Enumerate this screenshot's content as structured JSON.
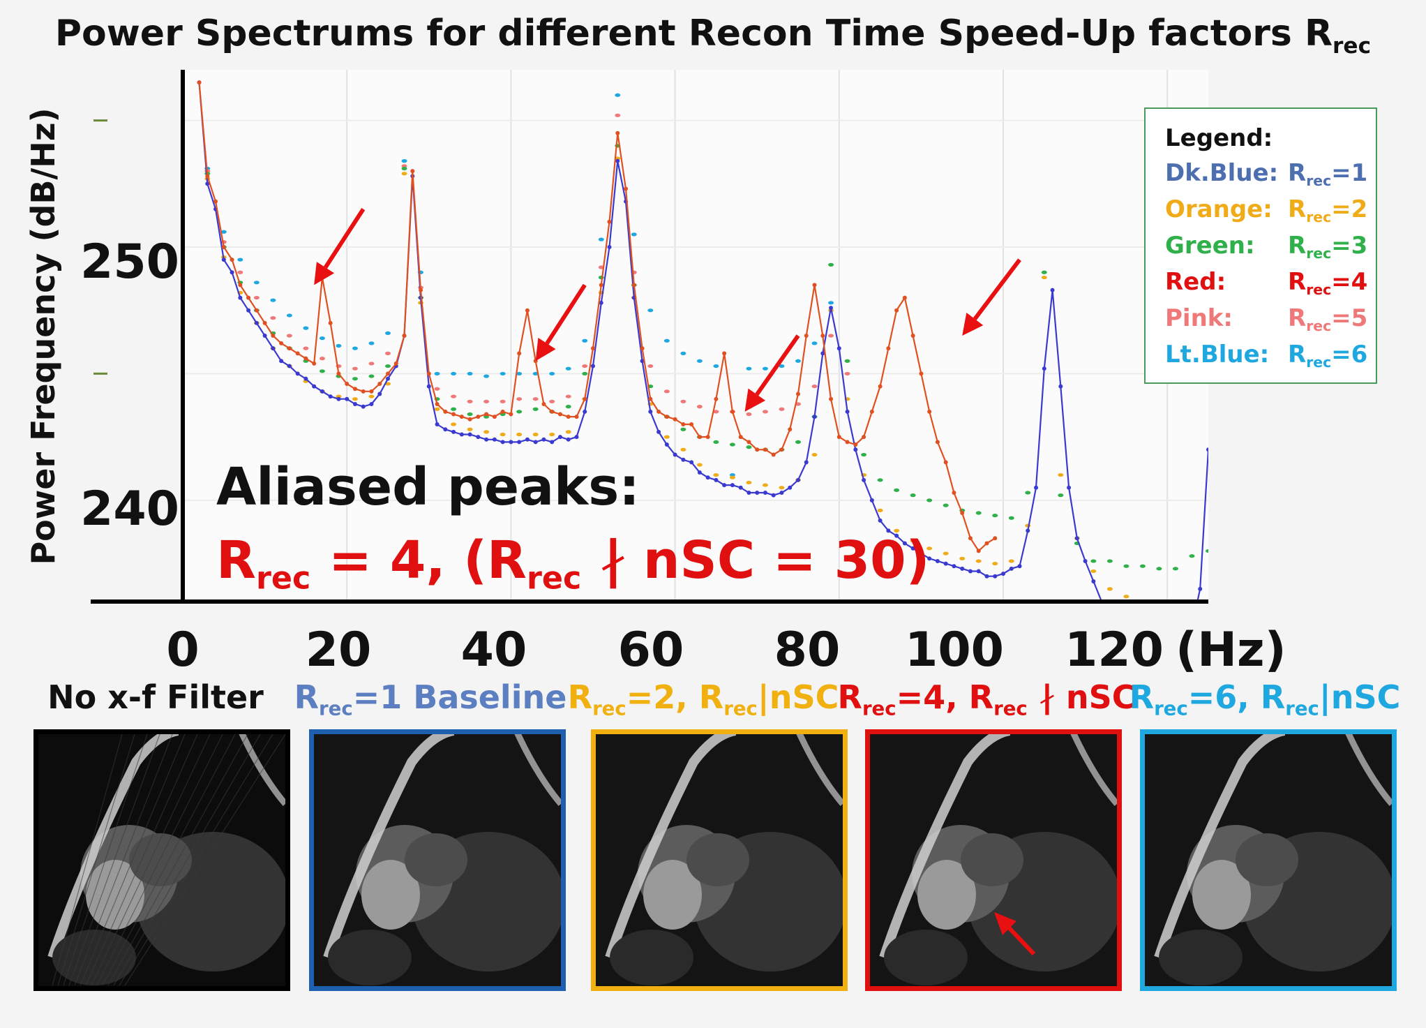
{
  "chart_data": {
    "type": "line",
    "title": "Power Spectrums for different Recon Time Speed-Up factors R",
    "title_sub": "rec",
    "ylabel": "Power Frequency (dB/Hz)",
    "xlim": [
      0,
      125
    ],
    "ylim": [
      236,
      257
    ],
    "y_ticks": [
      "240",
      "250"
    ],
    "x_ticks": [
      "0",
      "20",
      "40",
      "60",
      "80",
      "100",
      "120"
    ],
    "x_unit": "(Hz)",
    "legend": {
      "title": "Legend:",
      "position": "top-right",
      "entries": [
        {
          "label": "Dk.Blue:",
          "r": "R",
          "sub": "rec",
          "val": "=1",
          "color": "#4d6fb0"
        },
        {
          "label": "Orange:",
          "r": "R",
          "sub": "rec",
          "val": "=2",
          "color": "#f0ac18"
        },
        {
          "label": "Green:",
          "r": "R",
          "sub": "rec",
          "val": "=3",
          "color": "#2fb04a"
        },
        {
          "label": "Red:",
          "r": "R",
          "sub": "rec",
          "val": "=4",
          "color": "#e01010"
        },
        {
          "label": "Pink:",
          "r": "R",
          "sub": "rec",
          "val": "=5",
          "color": "#ef7878"
        },
        {
          "label": "Lt.Blue:",
          "r": "R",
          "sub": "rec",
          "val": "=6",
          "color": "#1fa8e0"
        }
      ]
    },
    "series": [
      {
        "name": "Dk.Blue",
        "color": "#3a3ad0",
        "style": "line",
        "x": [
          2,
          3,
          4,
          5,
          6,
          7,
          8,
          9,
          10,
          11,
          12,
          13,
          14,
          15,
          16,
          17,
          18,
          19,
          20,
          21,
          22,
          23,
          24,
          25,
          26,
          27,
          28,
          29,
          30,
          31,
          32,
          33,
          34,
          35,
          36,
          37,
          38,
          39,
          40,
          41,
          42,
          43,
          44,
          45,
          46,
          47,
          48,
          49,
          50,
          51,
          52,
          53,
          54,
          55,
          56,
          57,
          58,
          59,
          60,
          61,
          62,
          63,
          64,
          65,
          66,
          67,
          68,
          69,
          70,
          71,
          72,
          73,
          74,
          75,
          76,
          77,
          78,
          79,
          80,
          81,
          82,
          83,
          84,
          85,
          86,
          87,
          88,
          89,
          90,
          91,
          92,
          93,
          94,
          95,
          96,
          97,
          98,
          99,
          100,
          101,
          102,
          103,
          104,
          105,
          106,
          107,
          108,
          109,
          110,
          111,
          112,
          113,
          114,
          115,
          116,
          117,
          118,
          119,
          120,
          121,
          122,
          123,
          124,
          125
        ],
        "y": [
          256.5,
          252.5,
          251.5,
          249.5,
          249.0,
          248.0,
          247.5,
          247.0,
          246.5,
          246.0,
          245.5,
          245.3,
          245.0,
          244.8,
          244.5,
          244.3,
          244.1,
          244.0,
          244.0,
          243.8,
          243.7,
          243.8,
          244.2,
          244.8,
          245.3,
          246.5,
          252.8,
          248.0,
          244.5,
          243.0,
          242.8,
          242.7,
          242.6,
          242.6,
          242.5,
          242.4,
          242.4,
          242.3,
          242.3,
          242.3,
          242.4,
          242.3,
          242.4,
          242.3,
          242.5,
          242.4,
          242.5,
          243.5,
          245.3,
          247.8,
          250.0,
          253.4,
          251.8,
          248.0,
          245.5,
          243.5,
          242.7,
          242.2,
          241.8,
          241.6,
          241.5,
          241.1,
          240.9,
          240.8,
          240.6,
          240.6,
          240.5,
          240.3,
          240.3,
          240.3,
          240.2,
          240.3,
          240.5,
          240.8,
          241.5,
          243.3,
          245.8,
          247.6,
          246.0,
          243.5,
          242.0,
          240.8,
          240.0,
          239.2,
          238.8,
          238.6,
          238.3,
          238.1,
          237.9,
          237.7,
          237.6,
          237.5,
          237.4,
          237.3,
          237.2,
          237.2,
          237.0,
          237.0,
          237.1,
          237.3,
          237.4,
          238.8,
          240.5,
          245.2,
          248.3,
          244.5,
          240.5,
          238.5,
          237.6,
          236.8,
          236.0,
          235.5,
          235.3,
          235.2,
          235.1,
          235.0,
          235.0,
          235.0,
          235.0,
          235.0,
          235.0,
          235.0,
          236.5,
          242.0
        ]
      },
      {
        "name": "Red",
        "color": "#e05020",
        "style": "line",
        "x": [
          2,
          3,
          4,
          5,
          6,
          7,
          8,
          9,
          10,
          11,
          12,
          13,
          14,
          15,
          16,
          17,
          18,
          19,
          20,
          21,
          22,
          23,
          24,
          25,
          26,
          27,
          28,
          29,
          30,
          31,
          32,
          33,
          34,
          35,
          36,
          37,
          38,
          39,
          40,
          41,
          42,
          43,
          44,
          45,
          46,
          47,
          48,
          49,
          50,
          51,
          52,
          53,
          54,
          55,
          56,
          57,
          58,
          59,
          60,
          61,
          62,
          63,
          64,
          65,
          66,
          67,
          68,
          69,
          70,
          71,
          72,
          73,
          74,
          75,
          76,
          77,
          78,
          79,
          80,
          81,
          82,
          83,
          84,
          85,
          86,
          87,
          88,
          89,
          90,
          91,
          92,
          93,
          94,
          95,
          96,
          97,
          98,
          99
        ],
        "y": [
          256.5,
          252.8,
          251.8,
          250.0,
          249.5,
          248.5,
          248.0,
          247.5,
          247.0,
          246.5,
          246.2,
          246.0,
          245.8,
          245.6,
          245.4,
          248.8,
          247.0,
          245.0,
          244.6,
          244.4,
          244.3,
          244.3,
          244.6,
          245.0,
          245.4,
          246.5,
          253.0,
          248.3,
          245.0,
          243.8,
          243.5,
          243.4,
          243.3,
          243.2,
          243.3,
          243.4,
          243.3,
          243.5,
          243.4,
          245.8,
          247.5,
          245.5,
          243.8,
          243.5,
          243.4,
          243.3,
          243.3,
          244.0,
          246.0,
          248.5,
          251.0,
          254.5,
          252.3,
          248.5,
          246.0,
          244.0,
          243.5,
          243.3,
          243.2,
          243.0,
          243.0,
          242.5,
          242.5,
          244.0,
          245.8,
          243.5,
          242.5,
          242.3,
          242.0,
          242.0,
          241.8,
          242.0,
          242.8,
          244.2,
          246.5,
          248.5,
          246.5,
          244.0,
          242.5,
          242.3,
          242.2,
          242.5,
          243.5,
          244.5,
          246.0,
          247.5,
          248.0,
          246.5,
          245.0,
          243.5,
          242.3,
          241.5,
          240.3,
          239.5,
          238.5,
          238.0,
          238.3,
          238.5
        ]
      },
      {
        "name": "Orange",
        "color": "#f0ac18",
        "style": "dots",
        "x": [
          3,
          5,
          7,
          9,
          11,
          13,
          15,
          17,
          19,
          21,
          23,
          25,
          27,
          29,
          31,
          33,
          35,
          37,
          39,
          41,
          43,
          45,
          47,
          49,
          51,
          53,
          55,
          57,
          59,
          61,
          63,
          65,
          67,
          69,
          71,
          73,
          75,
          77,
          79,
          81,
          83,
          85,
          87,
          89,
          91,
          93,
          95,
          97,
          99,
          101,
          103,
          105,
          107,
          109,
          111,
          113,
          115,
          117,
          119
        ],
        "y": [
          252.7,
          249.6,
          248.2,
          247.0,
          246.0,
          245.3,
          244.7,
          244.3,
          244.1,
          244.0,
          244.1,
          244.6,
          252.9,
          247.8,
          243.6,
          243.0,
          242.8,
          242.7,
          242.6,
          242.6,
          242.6,
          242.6,
          242.7,
          244.0,
          248.2,
          253.5,
          248.0,
          243.8,
          242.5,
          242.0,
          241.4,
          241.0,
          240.9,
          240.7,
          240.6,
          240.5,
          240.8,
          241.8,
          247.5,
          244.0,
          241.0,
          239.6,
          238.8,
          238.4,
          238.1,
          237.9,
          237.7,
          237.6,
          237.5,
          237.6,
          239.0,
          248.8,
          241.0,
          238.5,
          237.2,
          236.5,
          236.2,
          236.0,
          235.8
        ]
      },
      {
        "name": "Green",
        "color": "#2fb04a",
        "style": "dots",
        "x": [
          3,
          5,
          7,
          9,
          11,
          13,
          15,
          17,
          19,
          21,
          23,
          25,
          27,
          29,
          31,
          33,
          35,
          37,
          39,
          41,
          43,
          45,
          47,
          49,
          51,
          53,
          55,
          57,
          59,
          61,
          63,
          65,
          67,
          69,
          71,
          73,
          75,
          77,
          79,
          81,
          83,
          85,
          87,
          89,
          91,
          93,
          95,
          97,
          99,
          101,
          103,
          105,
          107,
          109,
          111,
          113,
          115,
          117,
          119,
          121,
          123,
          125
        ],
        "y": [
          252.9,
          250.0,
          248.6,
          247.5,
          246.6,
          246.0,
          245.5,
          245.1,
          244.9,
          244.8,
          244.9,
          245.3,
          253.1,
          248.0,
          244.0,
          243.6,
          243.4,
          243.3,
          243.4,
          243.5,
          243.6,
          243.5,
          243.7,
          245.0,
          248.8,
          254.0,
          248.5,
          244.5,
          243.3,
          242.8,
          242.5,
          242.3,
          242.2,
          242.1,
          242.0,
          242.0,
          242.3,
          243.3,
          249.3,
          245.5,
          241.8,
          240.8,
          240.4,
          240.2,
          240.0,
          239.8,
          239.6,
          239.5,
          239.4,
          239.3,
          240.3,
          249.0,
          240.2,
          238.3,
          237.6,
          237.6,
          237.4,
          237.4,
          237.3,
          237.3,
          237.8,
          238.0
        ]
      },
      {
        "name": "Pink",
        "color": "#ef7878",
        "style": "dots",
        "x": [
          3,
          5,
          7,
          9,
          11,
          13,
          15,
          17,
          19,
          21,
          23,
          25,
          27,
          29,
          31,
          33,
          35,
          37,
          39,
          41,
          43,
          45,
          47,
          49,
          51,
          53,
          55,
          57,
          59,
          61,
          63,
          65,
          67,
          69,
          71,
          73,
          75,
          77,
          79,
          81
        ],
        "y": [
          253.0,
          250.2,
          249.0,
          248.0,
          247.2,
          246.5,
          246.0,
          245.6,
          245.3,
          245.2,
          245.4,
          245.8,
          253.2,
          248.4,
          244.4,
          244.1,
          243.9,
          243.9,
          243.9,
          244.0,
          244.0,
          243.9,
          244.1,
          245.3,
          249.2,
          255.2,
          249.0,
          245.3,
          244.3,
          243.9,
          243.7,
          243.5,
          243.5,
          243.4,
          243.5,
          243.6,
          243.8,
          244.5,
          246.5,
          245.0
        ]
      },
      {
        "name": "Lt.Blue",
        "color": "#1fa8e0",
        "style": "dots",
        "x": [
          3,
          5,
          7,
          9,
          11,
          13,
          15,
          17,
          19,
          21,
          23,
          25,
          27,
          29,
          31,
          33,
          35,
          37,
          39,
          41,
          43,
          45,
          47,
          49,
          51,
          53,
          55,
          57,
          59,
          61,
          63,
          65,
          67,
          69,
          71,
          73,
          75,
          77,
          79
        ],
        "y": [
          253.1,
          250.6,
          249.5,
          248.6,
          247.9,
          247.3,
          246.8,
          246.4,
          246.1,
          246.0,
          246.2,
          246.6,
          253.4,
          249.0,
          245.0,
          245.0,
          245.0,
          244.9,
          245.0,
          245.0,
          245.0,
          245.0,
          245.2,
          246.3,
          250.3,
          256.0,
          250.5,
          247.5,
          246.3,
          245.8,
          245.5,
          245.3,
          241.0,
          245.2,
          245.2,
          245.3,
          245.5,
          246.2,
          247.8
        ]
      }
    ],
    "arrows": [
      {
        "from": [
          22,
          251.5
        ],
        "to": [
          16,
          248.5
        ]
      },
      {
        "from": [
          49,
          248.5
        ],
        "to": [
          43,
          245.5
        ]
      },
      {
        "from": [
          75,
          246.5
        ],
        "to": [
          68.5,
          243.5
        ]
      },
      {
        "from": [
          102,
          249.5
        ],
        "to": [
          95,
          246.5
        ]
      }
    ]
  },
  "annotation": {
    "line1": "Aliased peaks:",
    "line2_r": "R",
    "line2_sub": "rec",
    "line2_a": " = 4, (R",
    "line2_sub2": "rec",
    "line2_b": " ∤ nSC = 30)"
  },
  "panels": [
    {
      "label": "No x-f Filter",
      "label_color": "#111111",
      "border_color": "#000000",
      "has_arrow": false
    },
    {
      "label_r": "R",
      "label_sub": "rec",
      "label_rest": "=1 Baseline",
      "label_color": "#5b7fc0",
      "border_color": "#1f5fb0",
      "has_arrow": false
    },
    {
      "label_r": "R",
      "label_sub": "rec",
      "label_rest": "=2, R",
      "label_sub2": "rec",
      "label_rest2": "|nSC",
      "label_color": "#f0b010",
      "border_color": "#f0b010",
      "has_arrow": false
    },
    {
      "label_r": "R",
      "label_sub": "rec",
      "label_rest": "=4, R",
      "label_sub2": "rec",
      "label_rest2": " ∤ nSC",
      "label_color": "#e01010",
      "border_color": "#e01010",
      "has_arrow": true
    },
    {
      "label_r": "R",
      "label_sub": "rec",
      "label_rest": "=6, R",
      "label_sub2": "rec",
      "label_rest2": "|nSC",
      "label_color": "#1fa8e0",
      "border_color": "#1fa8e0",
      "has_arrow": false
    }
  ]
}
